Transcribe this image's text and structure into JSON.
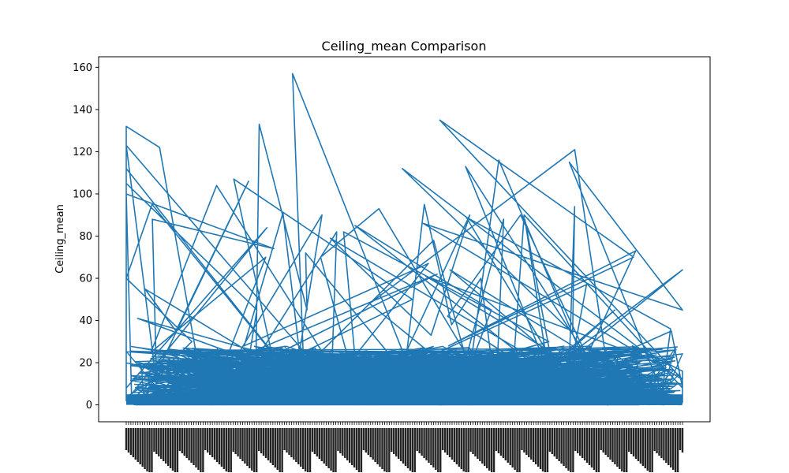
{
  "chart_data": {
    "type": "line",
    "title": "Ceiling_mean Comparison",
    "xlabel": "",
    "ylabel": "Ceiling_mean",
    "ylim": [
      -8,
      165
    ],
    "yticks": [
      0,
      20,
      40,
      60,
      80,
      100,
      120,
      140,
      160
    ],
    "grid": false,
    "legend": "none",
    "series": [
      {
        "color": "#1f77b4",
        "values": [
          5,
          45,
          105,
          2,
          84,
          8,
          132,
          122,
          12,
          20,
          112,
          3,
          95,
          60,
          30,
          2,
          100,
          74,
          88,
          10,
          123,
          6,
          41,
          15,
          104,
          25,
          70,
          2,
          90,
          12,
          55,
          35,
          106,
          4,
          62,
          18,
          82,
          9,
          67,
          28,
          91,
          3,
          157,
          8,
          72,
          45,
          133,
          14,
          50,
          107,
          6,
          78,
          22,
          88,
          5,
          60,
          38,
          95,
          11,
          30,
          82,
          4,
          70,
          93,
          20,
          45,
          85,
          7,
          57,
          16,
          90,
          33,
          79,
          2,
          64,
          26,
          116,
          10,
          48,
          121,
          8,
          61,
          20,
          112,
          34,
          94,
          4,
          73,
          28,
          70,
          135,
          12,
          86,
          45,
          115,
          6,
          36,
          89,
          3,
          42,
          90,
          22,
          113,
          5,
          88,
          13,
          64,
          3,
          90,
          8,
          35,
          2,
          45,
          11,
          1,
          28,
          16,
          1
        ]
      }
    ]
  }
}
